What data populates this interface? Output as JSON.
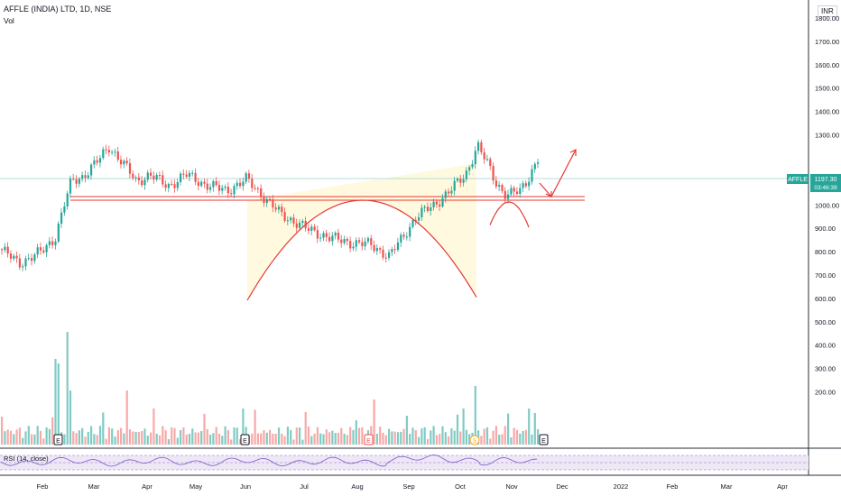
{
  "header": {
    "symbol_line": "AFFLE (INDIA) LTD, 1D, NSE",
    "indicator_line": "Vol",
    "currency": "INR"
  },
  "price_axis": {
    "labels": [
      "1800.00",
      "1700.00",
      "1600.00",
      "1500.00",
      "1400.00",
      "1300.00",
      "1100.00",
      "1000.00",
      "900.00",
      "800.00",
      "700.00",
      "600.00",
      "500.00",
      "400.00",
      "300.00",
      "200.00"
    ]
  },
  "last_price": {
    "ticker": "AFFLE",
    "value": "1197.30",
    "countdown": "03:46:39"
  },
  "rsi": {
    "label": "RSI (14, close)"
  },
  "time_axis": {
    "labels": [
      "Feb",
      "Mar",
      "Apr",
      "May",
      "Jun",
      "Jul",
      "Aug",
      "Sep",
      "Oct",
      "Nov",
      "Dec",
      "2022",
      "Feb",
      "Mar",
      "Apr"
    ]
  },
  "event_markers": [
    {
      "label": "E",
      "kind": "earnings"
    },
    {
      "label": "E",
      "kind": "earnings"
    },
    {
      "label": "E",
      "kind": "earnings-red"
    },
    {
      "label": "S",
      "kind": "split"
    },
    {
      "label": "E",
      "kind": "earnings"
    }
  ],
  "colors": {
    "up": "#26a69a",
    "down": "#ef5350",
    "vol_up": "#80cbc4",
    "vol_down": "#f7a9a7",
    "annotation": "#e53935",
    "rsi_line": "#7e57c2",
    "fill": "#fff8dc"
  },
  "chart_data": {
    "type": "candlestick",
    "title": "AFFLE (INDIA) LTD, 1D, NSE",
    "ylim": [
      150,
      1900
    ],
    "y_scale": "linear",
    "grid": false,
    "date_range": [
      "Jan 2021",
      "Nov 2021"
    ],
    "series": [
      {
        "name": "Vol",
        "type": "bar"
      },
      {
        "name": "RSI (14, close)",
        "type": "line"
      }
    ],
    "annotations": [
      {
        "type": "horizontal-level",
        "price_range": [
          1115,
          1130
        ]
      },
      {
        "type": "arc",
        "label": "cup",
        "x_range": [
          "Jun 2021",
          "Oct 2021"
        ],
        "bottom_price": 735
      },
      {
        "type": "arc",
        "label": "handle",
        "x_range": [
          "Oct 2021",
          "Nov 2021"
        ],
        "bottom_price": 1015
      },
      {
        "type": "arrow",
        "direction": "up",
        "target_price": 1305
      }
    ],
    "last_value": 1197.3
  }
}
